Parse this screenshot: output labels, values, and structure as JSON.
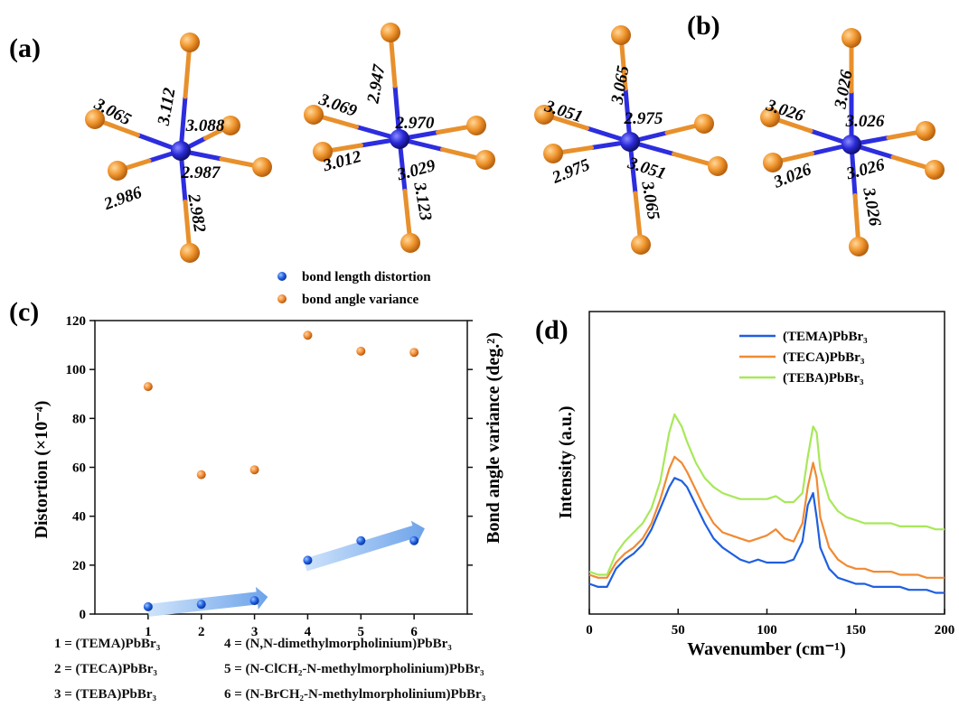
{
  "panels": {
    "a_label": "(a)",
    "b_label": "(b)",
    "c_label": "(c)",
    "d_label": "(d)"
  },
  "colors": {
    "pb": "#2a2ad8",
    "br": "#f0962e",
    "bond_blue": "#2d2ddf",
    "bond_orange": "#e8902c",
    "series_blue": "#1f5fe0",
    "series_orange": "#f08a33",
    "series_green": "#a8e85a",
    "arrow": "#8cb8ee"
  },
  "octahedra": [
    {
      "name": "octahedron-1",
      "bonds": [
        "3.112",
        "3.088",
        "3.065",
        "2.987",
        "2.986",
        "2.982"
      ]
    },
    {
      "name": "octahedron-2",
      "bonds": [
        "2.947",
        "3.069",
        "2.970",
        "3.012",
        "3.029",
        "3.123"
      ]
    },
    {
      "name": "octahedron-3",
      "bonds": [
        "3.065",
        "3.051",
        "2.975",
        "2.975",
        "3.051",
        "3.065"
      ]
    },
    {
      "name": "octahedron-4",
      "bonds": [
        "3.026",
        "3.026",
        "3.026",
        "3.026",
        "3.026",
        "3.026"
      ]
    }
  ],
  "chart_data": [
    {
      "type": "scatter",
      "panel": "(c)",
      "ylabel": "Distortion (×10⁻⁴)",
      "ylabel_right": "Bond angle variance (deg.²)",
      "xlim": [
        0,
        7
      ],
      "ylim": [
        0,
        120
      ],
      "x_ticks": [
        "1",
        "2",
        "3",
        "4",
        "5",
        "6"
      ],
      "y_ticks": [
        "0",
        "20",
        "40",
        "60",
        "80",
        "100",
        "120"
      ],
      "legend_placement": "top",
      "series": [
        {
          "name": "bond length distortion",
          "x": [
            1,
            2,
            3,
            4,
            5,
            6
          ],
          "values": [
            3,
            4,
            5.5,
            22,
            30,
            30
          ]
        },
        {
          "name": "bond angle variance",
          "x": [
            1,
            2,
            3,
            4,
            5,
            6
          ],
          "values": [
            93,
            57,
            59,
            114,
            107.5,
            107
          ]
        }
      ],
      "keys": [
        "1 = (TEMA)PbBr₃",
        "2 = (TECA)PbBr₃",
        "3 = (TEBA)PbBr₃",
        "4 = (N,N-dimethylmorpholinium)PbBr₃",
        "5 = (N-ClCH₂-N-methylmorpholinium)PbBr₃",
        "6 = (N-BrCH₂-N-methylmorpholinium)PbBr₃"
      ]
    },
    {
      "type": "line",
      "panel": "(d)",
      "xlabel": "Wavenumber (cm⁻¹)",
      "ylabel": "Intensity (a.u.)",
      "xlim": [
        0,
        200
      ],
      "ylim": [
        0,
        100
      ],
      "x_ticks": [
        "0",
        "50",
        "100",
        "150",
        "200"
      ],
      "legend_placement": "top-right",
      "x": [
        0,
        5,
        10,
        15,
        20,
        25,
        30,
        35,
        40,
        45,
        48,
        52,
        55,
        60,
        65,
        70,
        75,
        80,
        85,
        90,
        95,
        100,
        105,
        110,
        115,
        120,
        123,
        126,
        128,
        130,
        135,
        140,
        145,
        150,
        155,
        160,
        165,
        170,
        175,
        180,
        185,
        190,
        195,
        200
      ],
      "series": [
        {
          "name": "(TEMA)PbBr₃",
          "values": [
            10,
            9,
            9,
            15,
            18,
            20,
            23,
            28,
            35,
            42,
            45,
            44,
            42,
            36,
            30,
            25,
            22,
            20,
            18,
            17,
            18,
            17,
            17,
            17,
            18,
            24,
            36,
            40,
            32,
            22,
            15,
            12,
            11,
            10,
            10,
            9,
            9,
            9,
            9,
            8,
            8,
            8,
            7,
            7
          ]
        },
        {
          "name": "(TECA)PbBr₃",
          "values": [
            13,
            12,
            12,
            17,
            20,
            22,
            25,
            30,
            38,
            48,
            52,
            50,
            47,
            41,
            35,
            30,
            27,
            26,
            25,
            24,
            25,
            26,
            28,
            25,
            24,
            30,
            42,
            50,
            45,
            32,
            22,
            18,
            16,
            15,
            15,
            14,
            14,
            14,
            13,
            13,
            13,
            12,
            12,
            12
          ]
        },
        {
          "name": "(TEBA)PbBr₃",
          "values": [
            14,
            13,
            13,
            20,
            24,
            27,
            30,
            35,
            44,
            60,
            66,
            62,
            57,
            50,
            45,
            42,
            40,
            39,
            38,
            38,
            38,
            38,
            39,
            37,
            37,
            40,
            52,
            62,
            60,
            48,
            38,
            34,
            32,
            31,
            30,
            30,
            30,
            30,
            29,
            29,
            29,
            29,
            28,
            28
          ]
        }
      ]
    }
  ]
}
